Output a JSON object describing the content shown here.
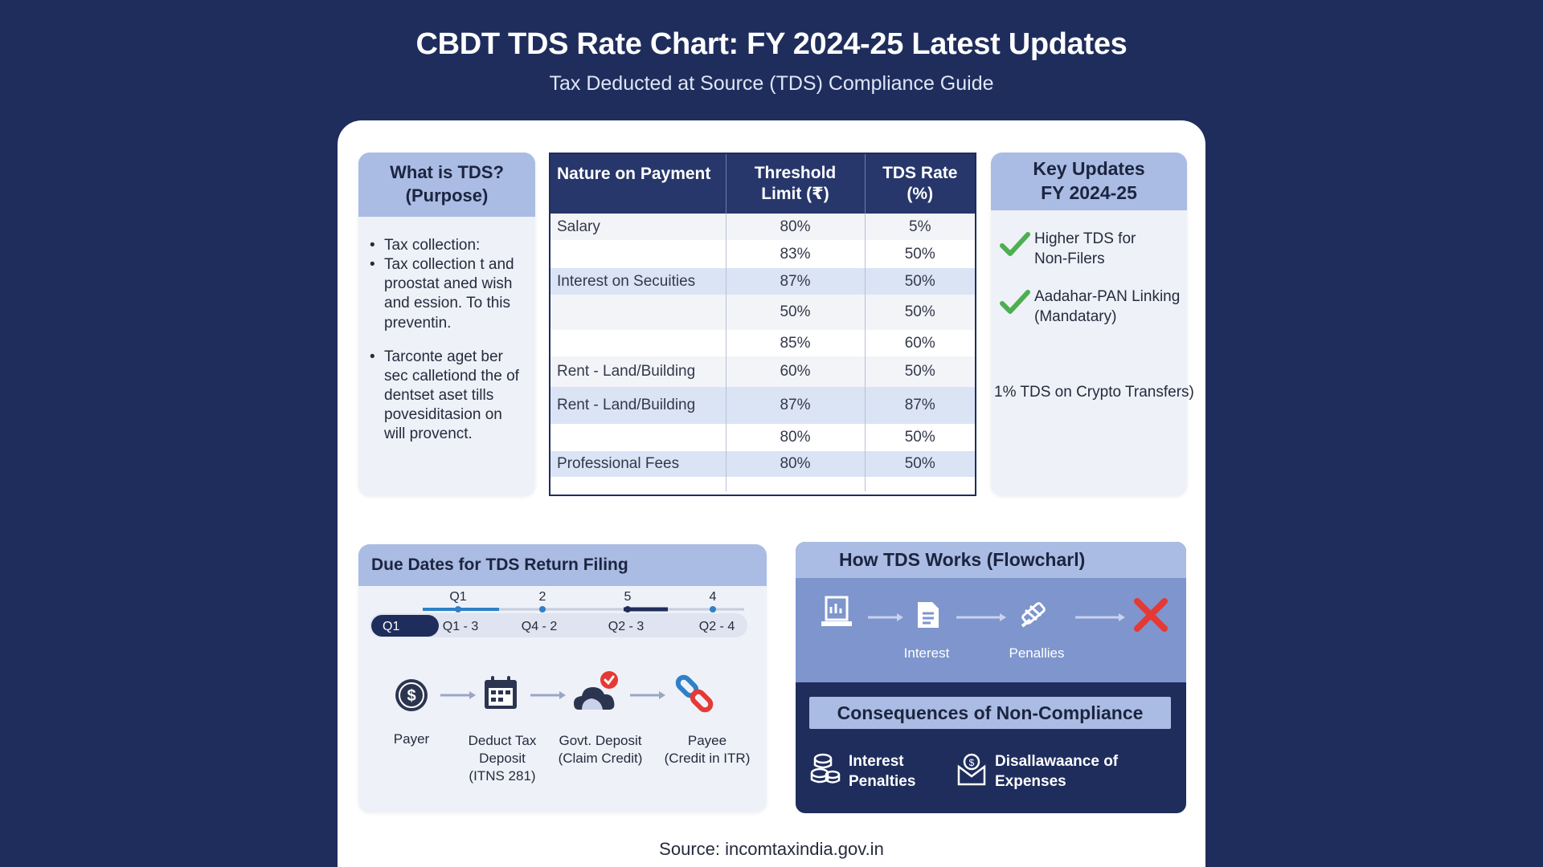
{
  "header": {
    "title": "CBDT TDS Rate Chart: FY 2024-25 Latest Updates",
    "subtitle": "Tax Deducted at Source (TDS) Compliance Guide"
  },
  "purpose": {
    "title": "What is TDS?\n(Purpose)",
    "bullets": [
      "Tax collection:",
      "Tax collection t and proostat aned wish and ession. To this preventin.",
      "Tarconte aget ber sec calletiond the of dentset aset tills povesiditasion on will provenct."
    ]
  },
  "table": {
    "headers": [
      "Nature on Payment",
      "Threshold\nLimit (₹)",
      "TDS Rate\n(%)"
    ],
    "rows": [
      {
        "nature": "Salary",
        "threshold": "80%",
        "rate": "5%"
      },
      {
        "nature": "",
        "threshold": "83%",
        "rate": "50%"
      },
      {
        "nature": "Interest on Secuities",
        "threshold": "87%",
        "rate": "50%"
      },
      {
        "nature": "",
        "threshold": "50%",
        "rate": "50%"
      },
      {
        "nature": "",
        "threshold": "85%",
        "rate": "60%"
      },
      {
        "nature": "Rent - Land/Building",
        "threshold": "60%",
        "rate": "50%"
      },
      {
        "nature": "Rent - Land/Building",
        "threshold": "87%",
        "rate": "87%"
      },
      {
        "nature": "",
        "threshold": "80%",
        "rate": "50%"
      },
      {
        "nature": "Professional Fees",
        "threshold": "80%",
        "rate": "50%"
      }
    ]
  },
  "updates": {
    "title": "Key Updates\nFY 2024-25",
    "items": [
      "Higher TDS for\nNon-Filers",
      "Aadahar-PAN Linking\n(Mandatary)"
    ],
    "note": "1% TDS on Crypto Transfers)",
    "check_color": "#4caf50"
  },
  "due": {
    "title": "Due Dates for TDS Return Filing",
    "top_marks": [
      "Q1",
      "2",
      "5",
      "4"
    ],
    "pill_label": "Q1",
    "segments": [
      "Q1 - 3",
      "Q4 - 2",
      "Q2 - 3",
      "Q2 - 4"
    ],
    "flow": [
      {
        "icon": "dollar-coin-icon",
        "label": "Payer"
      },
      {
        "icon": "calendar-icon",
        "label": "Deduct Tax\nDeposit\n(ITNS 281)"
      },
      {
        "icon": "cloud-deposit-icon",
        "label": "Govt. Deposit\n(Claim Credit)"
      },
      {
        "icon": "link-icon",
        "label": "Payee\n(Credit in ITR)"
      }
    ]
  },
  "how": {
    "title": "How TDS Works (Flowcharl)",
    "flow_labels": [
      "Interest",
      "Penallies"
    ],
    "consequences_title": "Consequences of Non-Compliance",
    "consequences": [
      "Interest\nPenalties",
      "Disallawaance of\nExpenses"
    ],
    "cross_color": "#e53935"
  },
  "source": "Source: incomtaxindia.gov.in",
  "colors": {
    "background": "#1f2d5c",
    "panel_header": "#aabce3",
    "table_header": "#27376b",
    "highlight_row": "#dbe4f5",
    "accent_blue": "#2f80c8"
  }
}
